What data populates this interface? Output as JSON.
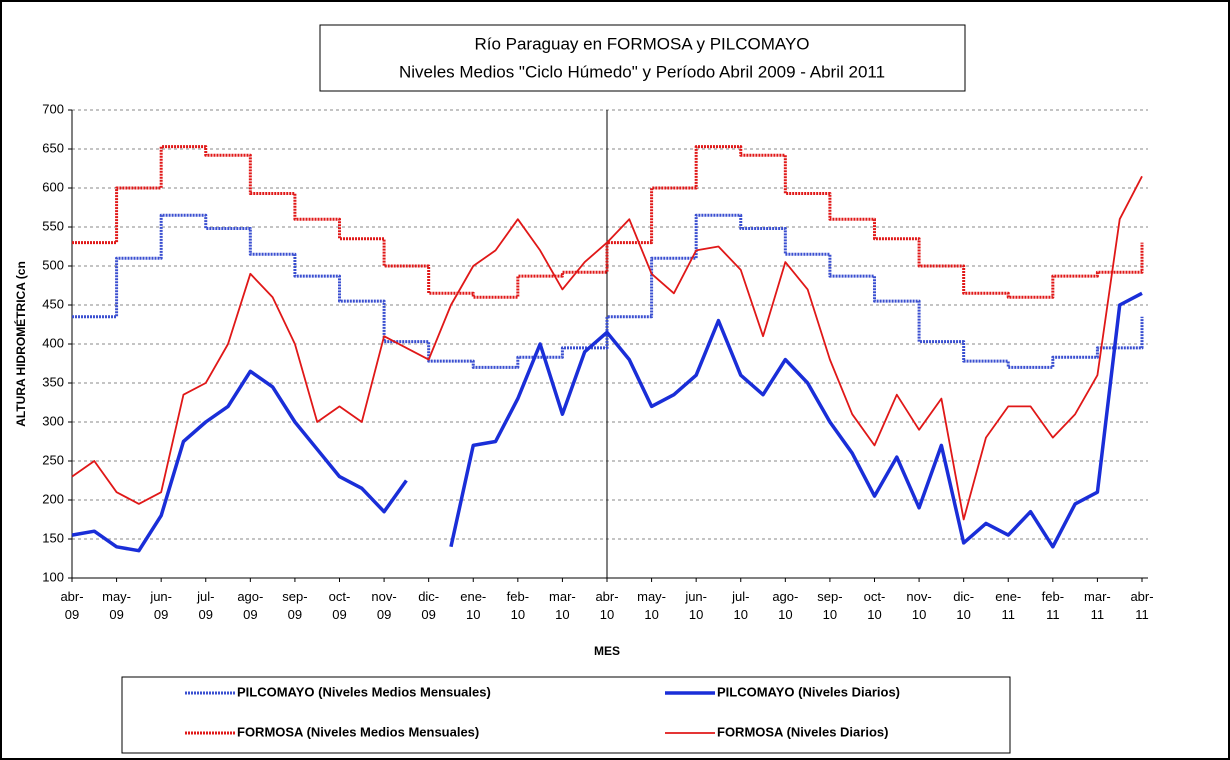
{
  "chart_data": {
    "type": "line",
    "title": "Río Paraguay en FORMOSA y PILCOMAYO",
    "subtitle": "Niveles Medios \"Ciclo Húmedo\" y Período Abril 2009 - Abril 2011",
    "y_label": "ALTURA HIDROMÉTRICA (cn",
    "x_label": "MES",
    "categories": [
      "abr-09",
      null,
      "may-09",
      null,
      "jun-09",
      null,
      "jul-09",
      null,
      "ago-09",
      null,
      "sep-09",
      null,
      "oct-09",
      null,
      "nov-09",
      null,
      "dic-09",
      null,
      "ene-10",
      null,
      "feb-10",
      null,
      "mar-10",
      null,
      "abr-10",
      null,
      "may-10",
      null,
      "jun-10",
      null,
      "jul-10",
      null,
      "ago-10",
      null,
      "sep-10",
      null,
      "oct-10",
      null,
      "nov-10",
      null,
      "dic-10",
      null,
      "ene-11",
      null,
      "feb-11",
      null,
      "mar-11",
      null,
      "abr-11"
    ],
    "ylim": [
      100,
      700
    ],
    "yticks": [
      100,
      150,
      200,
      250,
      300,
      350,
      400,
      450,
      500,
      550,
      600,
      650,
      700
    ],
    "grid": true,
    "series": [
      {
        "name": "PILCOMAYO (Niveles Medios Mensuales)",
        "color": "#3a4fd0",
        "step": true,
        "values": [
          435,
          435,
          510,
          510,
          565,
          565,
          548,
          548,
          515,
          515,
          487,
          487,
          455,
          455,
          403,
          403,
          378,
          378,
          370,
          370,
          383,
          383,
          395,
          395,
          435,
          435,
          510,
          510,
          565,
          565,
          548,
          548,
          515,
          515,
          487,
          487,
          455,
          455,
          403,
          403,
          378,
          378,
          370,
          370,
          383,
          383,
          395,
          395,
          435
        ]
      },
      {
        "name": "PILCOMAYO (Niveles Diarios)",
        "color": "#1a2ed8",
        "step": false,
        "values": [
          155,
          160,
          140,
          135,
          180,
          275,
          300,
          320,
          365,
          345,
          300,
          265,
          230,
          215,
          185,
          225,
          null,
          140,
          270,
          275,
          330,
          400,
          310,
          390,
          415,
          380,
          320,
          335,
          360,
          430,
          360,
          335,
          380,
          350,
          300,
          260,
          205,
          255,
          190,
          270,
          145,
          170,
          155,
          185,
          140,
          195,
          210,
          450,
          465
        ]
      },
      {
        "name": "FORMOSA (Niveles Medios Mensuales)",
        "color": "#e01818",
        "step": true,
        "values": [
          530,
          530,
          600,
          600,
          653,
          653,
          642,
          642,
          593,
          593,
          560,
          560,
          535,
          535,
          500,
          500,
          465,
          465,
          460,
          460,
          487,
          487,
          492,
          492,
          530,
          530,
          600,
          600,
          653,
          653,
          642,
          642,
          593,
          593,
          560,
          560,
          535,
          535,
          500,
          500,
          465,
          465,
          460,
          460,
          487,
          487,
          492,
          492,
          530
        ]
      },
      {
        "name": "FORMOSA (Niveles Diarios)",
        "color": "#e01818",
        "step": false,
        "values": [
          230,
          250,
          210,
          195,
          210,
          335,
          350,
          400,
          490,
          460,
          400,
          300,
          320,
          300,
          410,
          395,
          380,
          450,
          500,
          520,
          560,
          520,
          470,
          505,
          530,
          560,
          490,
          465,
          520,
          525,
          495,
          410,
          505,
          470,
          380,
          310,
          270,
          335,
          290,
          330,
          175,
          280,
          320,
          320,
          280,
          310,
          360,
          560,
          615
        ]
      }
    ]
  }
}
